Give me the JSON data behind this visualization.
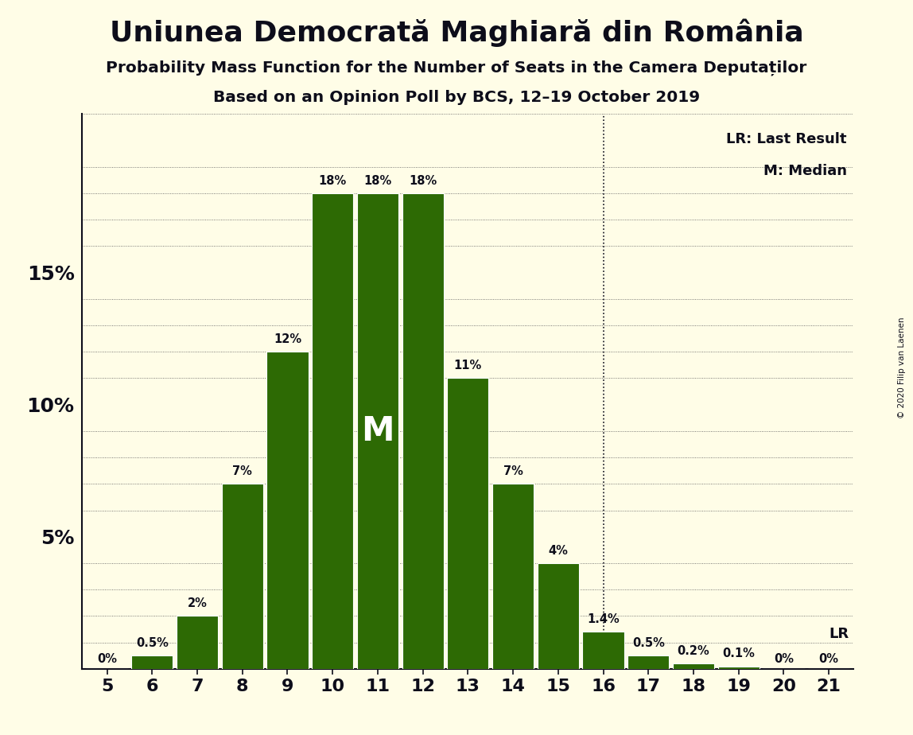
{
  "title": "Uniunea Democrată Maghiară din România",
  "subtitle1": "Probability Mass Function for the Number of Seats in the Camera Deputaților",
  "subtitle2": "Based on an Opinion Poll by BCS, 12–19 October 2019",
  "copyright": "© 2020 Filip van Laenen",
  "seats": [
    5,
    6,
    7,
    8,
    9,
    10,
    11,
    12,
    13,
    14,
    15,
    16,
    17,
    18,
    19,
    20,
    21
  ],
  "probabilities": [
    0.0,
    0.5,
    2.0,
    7.0,
    12.0,
    18.0,
    18.0,
    18.0,
    11.0,
    7.0,
    4.0,
    1.4,
    0.5,
    0.2,
    0.1,
    0.0,
    0.0
  ],
  "labels": [
    "0%",
    "0.5%",
    "2%",
    "7%",
    "12%",
    "18%",
    "18%",
    "18%",
    "11%",
    "7%",
    "4%",
    "1.4%",
    "0.5%",
    "0.2%",
    "0.1%",
    "0%",
    "0%"
  ],
  "bar_color": "#2d6a04",
  "background_color": "#fffde7",
  "text_color": "#0d0d1a",
  "median_seat": 11,
  "last_result_seat": 16,
  "ylim": [
    0,
    20.5
  ],
  "legend_lr": "LR: Last Result",
  "legend_m": "M: Median"
}
